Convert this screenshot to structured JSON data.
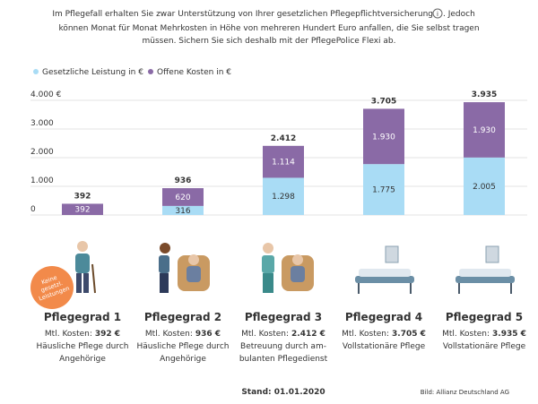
{
  "intro": {
    "line1": [
      "Im Pflegefall erhalten Sie zwar Unterstützung von Ihrer gesetzlichen Pflegepflichtversicherung",
      ". Jedoch"
    ],
    "lines": [
      "können Monat für Monat Mehrkosten in Höhe von mehreren Hundert Euro anfallen, die Sie selbst tragen",
      "müssen. Sichern Sie sich deshalb mit der PflegePolice Flexi ab."
    ]
  },
  "chart_data": {
    "type": "stacked_bar",
    "categories": [
      "Pflegegrad 1",
      "Pflegegrad 2",
      "Pflegegrad 3",
      "Pflegegrad 4",
      "Pflegegrad 5"
    ],
    "series": [
      {
        "name": "Gesetzliche Leistung in €",
        "color": "#a9dcf5",
        "values": [
          null,
          316,
          1298,
          1775,
          2005
        ],
        "value_labels": [
          null,
          "316",
          "1.298",
          "1.775",
          "2.005"
        ]
      },
      {
        "name": "Offene Kosten in €",
        "color": "#8a6aa6",
        "values": [
          392,
          620,
          1114,
          1930,
          1930
        ],
        "value_labels": [
          "392",
          "620",
          "1.114",
          "1.930",
          "1.930"
        ]
      }
    ],
    "totals": {
      "values": [
        392,
        936,
        2412,
        3705,
        3935
      ],
      "labels": [
        "392",
        "936",
        "2.412",
        "3.705",
        "3.935"
      ]
    },
    "ylim": [
      0,
      4000
    ],
    "yticks": [
      0,
      {
        "value": 1000,
        "label": "1.000"
      },
      {
        "value": 2000,
        "label": "2.000"
      },
      {
        "value": 3000,
        "label": "3.000"
      },
      {
        "value": 4000,
        "label": "4.000  €"
      }
    ],
    "grid": true,
    "legend": "top-left",
    "badge": [
      "Keine",
      "gesetzl.",
      "Leistungen"
    ],
    "cost_prefix": "Mtl. Kosten:",
    "details": [
      {
        "cost": "392 €",
        "description": [
          "Häusliche Pflege durch",
          "Angehörige"
        ]
      },
      {
        "cost": "936 €",
        "description": [
          "Häusliche Pflege durch",
          "Angehörige"
        ]
      },
      {
        "cost": "2.412 €",
        "description": [
          "Betreuung durch am-",
          "bulanten Pflegedienst"
        ]
      },
      {
        "cost": "3.705 €",
        "description": [
          "Vollstationäre Pflege"
        ]
      },
      {
        "cost": "3.935 €",
        "description": [
          "Vollstationäre Pflege"
        ]
      }
    ]
  },
  "footer": {
    "stand": "Stand: 01.01.2020",
    "credit": "Bild: Allianz Deutschland AG"
  }
}
